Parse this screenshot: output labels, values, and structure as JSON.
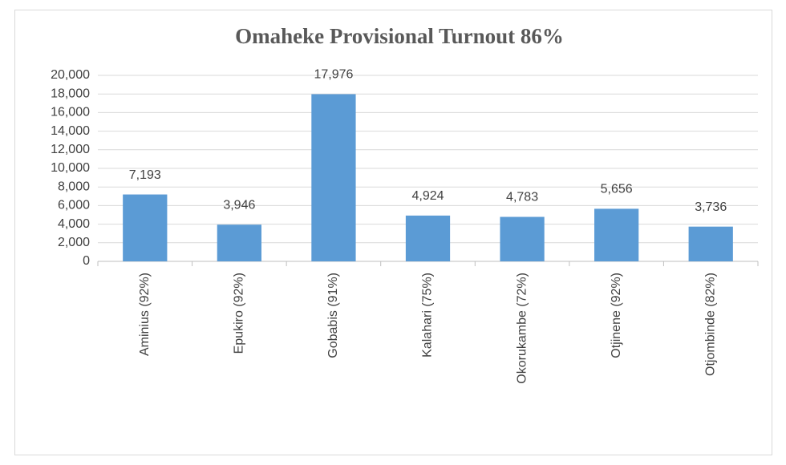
{
  "chart_data": {
    "type": "bar",
    "title": "Omaheke Provisional Turnout 86%",
    "categories": [
      "Aminius (92%)",
      "Epukiro (92%)",
      "Gobabis (91%)",
      "Kalahari (75%)",
      "Okorukambe (72%)",
      "Otjinene (92%)",
      "Otjombinde (82%)"
    ],
    "values": [
      7193,
      3946,
      17976,
      4924,
      4783,
      5656,
      3736
    ],
    "value_labels": [
      "7,193",
      "3,946",
      "17,976",
      "4,924",
      "4,783",
      "5,656",
      "3,736"
    ],
    "color": "#5b9bd5",
    "ylim": [
      0,
      20000
    ],
    "yticks": [
      0,
      {
        "value": 2000,
        "label": "2,000"
      },
      {
        "value": 4000,
        "label": "4,000"
      },
      {
        "value": 6000,
        "label": "6,000"
      },
      {
        "value": 8000,
        "label": "8,000"
      },
      {
        "value": 10000,
        "label": "10,000"
      },
      {
        "value": 12000,
        "label": "12,000"
      },
      {
        "value": 14000,
        "label": "14,000"
      },
      {
        "value": 16000,
        "label": "16,000"
      },
      {
        "value": 18000,
        "label": "18,000"
      },
      {
        "value": 20000,
        "label": "20,000"
      }
    ],
    "grid": true
  }
}
